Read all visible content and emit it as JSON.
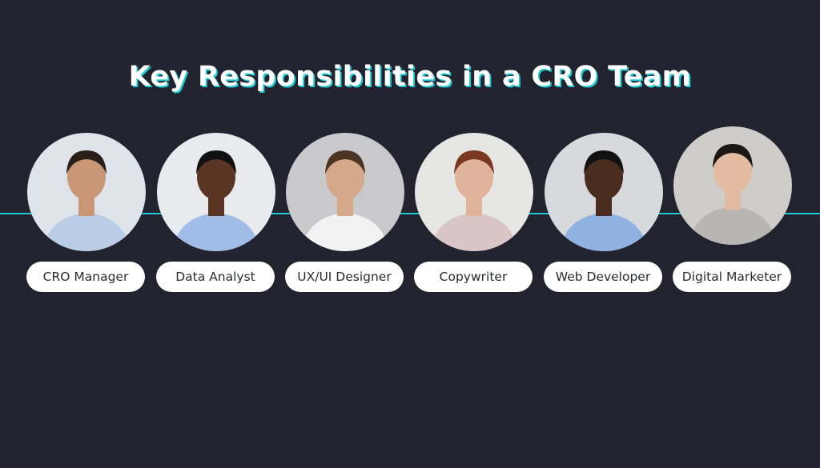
{
  "title": "Key Responsibilities in a CRO Team",
  "colors": {
    "background": "#22232e",
    "accent": "#1ec8d0",
    "label_bg": "#ffffff"
  },
  "members": [
    {
      "role": "CRO Manager",
      "bg": "#dfe4ea",
      "skin": "#c99676",
      "hair": "#2a1f18",
      "shirt": "#b9cde6"
    },
    {
      "role": "Data Analyst",
      "bg": "#e8eaed",
      "skin": "#5a3524",
      "hair": "#111111",
      "shirt": "#9fbde6"
    },
    {
      "role": "UX/UI Designer",
      "bg": "#c9c9cb",
      "skin": "#d6a88a",
      "hair": "#4a3424",
      "shirt": "#f2f2f2"
    },
    {
      "role": "Copywriter",
      "bg": "#e6e6e4",
      "skin": "#e0b49a",
      "hair": "#7a3a22",
      "shirt": "#d9c4c6"
    },
    {
      "role": "Web Developer",
      "bg": "#d8d9dc",
      "skin": "#4a2c1e",
      "hair": "#111111",
      "shirt": "#8fb2e3"
    },
    {
      "role": "Digital Marketer",
      "bg": "#cfcdca",
      "skin": "#e2bba0",
      "hair": "#1c1714",
      "shirt": "#b8b6b2"
    }
  ]
}
